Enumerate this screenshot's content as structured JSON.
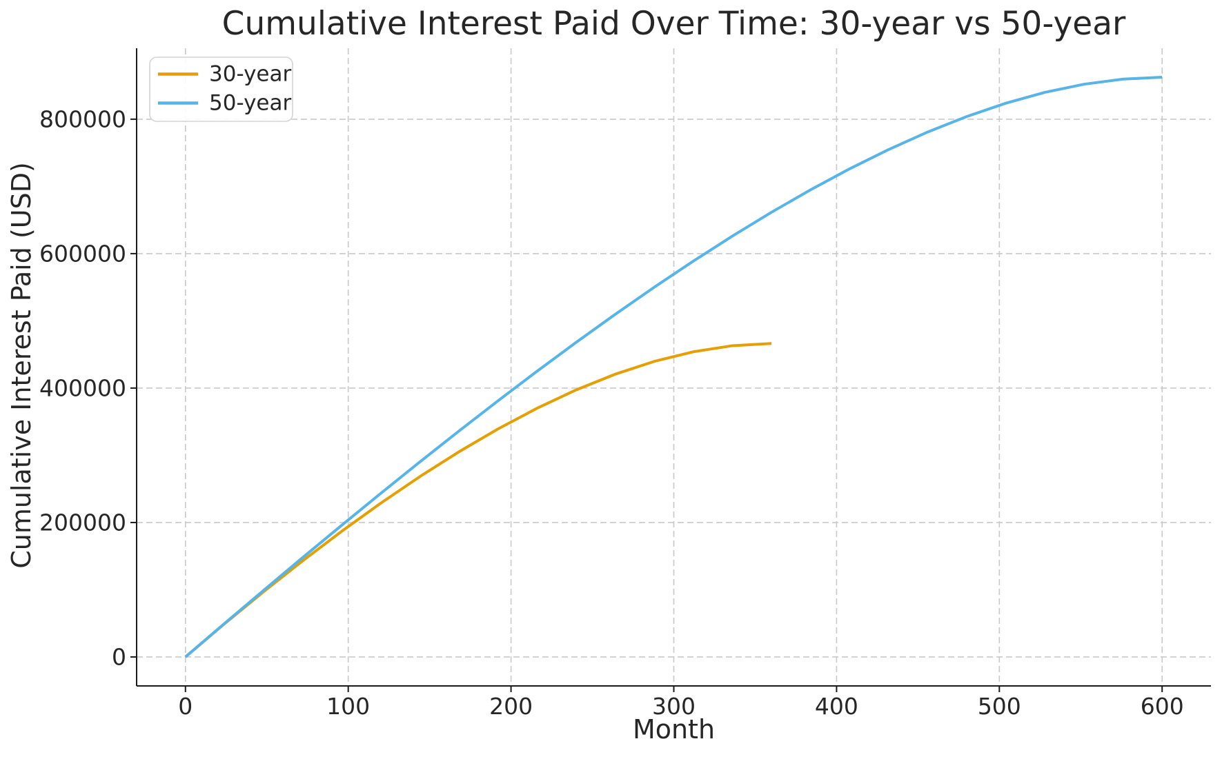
{
  "page": {
    "background": "#ffffff",
    "text_color": "#262626",
    "axis_color": "#1a1a1a",
    "grid_color": "#c9c9c9"
  },
  "chart_data": {
    "type": "line",
    "title": "Cumulative Interest Paid Over Time: 30-year vs 50-year",
    "xlabel": "Month",
    "ylabel": "Cumulative Interest Paid (USD)",
    "xlim": [
      -30,
      630
    ],
    "ylim": [
      -43120,
      905520
    ],
    "xticks": [
      0,
      100,
      200,
      300,
      400,
      500,
      600
    ],
    "yticks": [
      0,
      200000,
      400000,
      600000,
      800000
    ],
    "grid": true,
    "grid_style": "dashed",
    "legend_position": "upper-left",
    "series": [
      {
        "name": "30-year",
        "color": "#E69F00",
        "x": [
          0,
          24,
          48,
          72,
          96,
          120,
          144,
          168,
          192,
          216,
          240,
          264,
          288,
          312,
          336,
          360
        ],
        "y": [
          0,
          49287,
          96987,
          142932,
          186938,
          228802,
          268299,
          305181,
          339173,
          369971,
          397240,
          420613,
          439680,
          453989,
          463033,
          466269
        ]
      },
      {
        "name": "50-year",
        "color": "#56B4E9",
        "x": [
          0,
          24,
          48,
          72,
          96,
          120,
          144,
          168,
          192,
          216,
          240,
          264,
          288,
          312,
          336,
          360,
          384,
          408,
          432,
          456,
          480,
          504,
          528,
          552,
          576,
          600
        ],
        "y": [
          0,
          49778,
          99060,
          147795,
          195926,
          243389,
          290113,
          336022,
          381030,
          425042,
          467953,
          509648,
          549999,
          588866,
          626092,
          661504,
          694921,
          726124,
          754877,
          780932,
          804021,
          823791,
          839917,
          852013,
          859666,
          862401
        ]
      }
    ]
  }
}
